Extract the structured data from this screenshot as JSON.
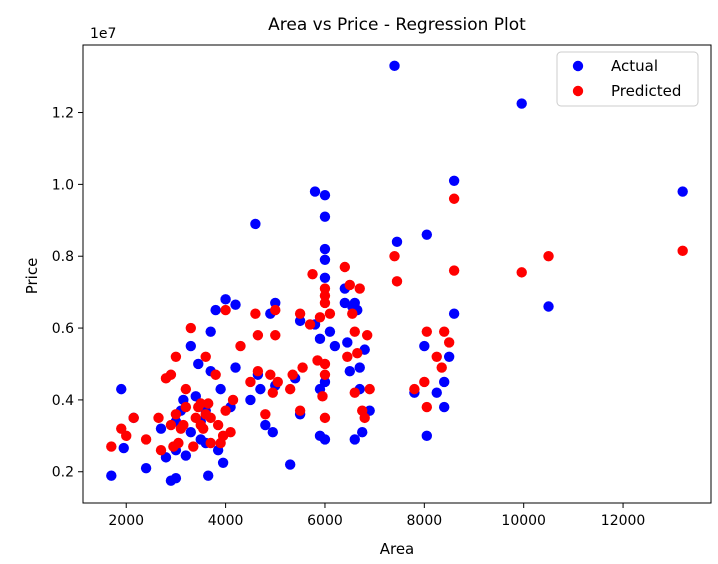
{
  "chart_data": {
    "type": "scatter",
    "title": "Area vs Price - Regression Plot",
    "xlabel": "Area",
    "ylabel": "Price",
    "y_scale_label": "1e7",
    "xlim": [
      1130,
      13770
    ],
    "ylim": [
      1130000,
      13880000
    ],
    "xticks": [
      2000,
      4000,
      6000,
      8000,
      10000,
      12000
    ],
    "yticks": [
      2000000,
      4000000,
      6000000,
      8000000,
      10000000,
      12000000
    ],
    "ytick_labels": [
      "0.2",
      "0.4",
      "0.6",
      "0.8",
      "1.0",
      "1.2"
    ],
    "grid": false,
    "legend_position": "top-right",
    "series": [
      {
        "name": "Actual",
        "color": "#0000ff",
        "points": [
          [
            1700,
            1890000
          ],
          [
            1950,
            2660000
          ],
          [
            1900,
            4300000
          ],
          [
            2150,
            3500000
          ],
          [
            2400,
            2100000
          ],
          [
            2700,
            3200000
          ],
          [
            2800,
            2400000
          ],
          [
            2900,
            1750000
          ],
          [
            3000,
            1820000
          ],
          [
            3000,
            2600000
          ],
          [
            3000,
            3400000
          ],
          [
            3100,
            3700000
          ],
          [
            3150,
            4000000
          ],
          [
            3200,
            2450000
          ],
          [
            3300,
            3100000
          ],
          [
            3300,
            5500000
          ],
          [
            3400,
            4100000
          ],
          [
            3450,
            5000000
          ],
          [
            3500,
            3400000
          ],
          [
            3500,
            2900000
          ],
          [
            3600,
            2800000
          ],
          [
            3600,
            3700000
          ],
          [
            3650,
            1890000
          ],
          [
            3700,
            4800000
          ],
          [
            3700,
            5900000
          ],
          [
            3800,
            6500000
          ],
          [
            3850,
            2600000
          ],
          [
            3900,
            4300000
          ],
          [
            3950,
            2250000
          ],
          [
            4000,
            6800000
          ],
          [
            4100,
            3800000
          ],
          [
            4200,
            4900000
          ],
          [
            4200,
            6650000
          ],
          [
            4500,
            4000000
          ],
          [
            4600,
            8900000
          ],
          [
            4650,
            4700000
          ],
          [
            4700,
            4300000
          ],
          [
            4800,
            3300000
          ],
          [
            4900,
            6400000
          ],
          [
            4950,
            3100000
          ],
          [
            5000,
            6700000
          ],
          [
            5000,
            4400000
          ],
          [
            5300,
            2200000
          ],
          [
            5400,
            4600000
          ],
          [
            5500,
            6200000
          ],
          [
            5500,
            3600000
          ],
          [
            5800,
            9800000
          ],
          [
            5800,
            6100000
          ],
          [
            5900,
            4300000
          ],
          [
            5900,
            5700000
          ],
          [
            5900,
            3000000
          ],
          [
            6000,
            9700000
          ],
          [
            6000,
            9100000
          ],
          [
            6000,
            8200000
          ],
          [
            6000,
            7900000
          ],
          [
            6000,
            7400000
          ],
          [
            6000,
            2900000
          ],
          [
            6000,
            4500000
          ],
          [
            6100,
            5900000
          ],
          [
            6200,
            5500000
          ],
          [
            6400,
            6700000
          ],
          [
            6400,
            7100000
          ],
          [
            6450,
            5600000
          ],
          [
            6500,
            4800000
          ],
          [
            6550,
            6600000
          ],
          [
            6600,
            6700000
          ],
          [
            6600,
            2900000
          ],
          [
            6650,
            6500000
          ],
          [
            6700,
            4300000
          ],
          [
            6700,
            4900000
          ],
          [
            6750,
            3100000
          ],
          [
            6800,
            5400000
          ],
          [
            6900,
            3700000
          ],
          [
            7400,
            13300000
          ],
          [
            7450,
            8400000
          ],
          [
            7800,
            4200000
          ],
          [
            8000,
            5500000
          ],
          [
            8050,
            3000000
          ],
          [
            8050,
            8600000
          ],
          [
            8250,
            4200000
          ],
          [
            8400,
            4500000
          ],
          [
            8400,
            3800000
          ],
          [
            8500,
            5200000
          ],
          [
            8600,
            10100000
          ],
          [
            8600,
            6400000
          ],
          [
            9960,
            12250000
          ],
          [
            10500,
            6600000
          ],
          [
            13200,
            9800000
          ]
        ]
      },
      {
        "name": "Predicted",
        "color": "#ff0000",
        "points": [
          [
            1700,
            2700000
          ],
          [
            1900,
            3200000
          ],
          [
            2000,
            3000000
          ],
          [
            2150,
            3500000
          ],
          [
            2400,
            2900000
          ],
          [
            2650,
            3500000
          ],
          [
            2700,
            2600000
          ],
          [
            2800,
            4600000
          ],
          [
            2900,
            4700000
          ],
          [
            2900,
            3300000
          ],
          [
            2950,
            2700000
          ],
          [
            3000,
            5200000
          ],
          [
            3000,
            3600000
          ],
          [
            3050,
            2800000
          ],
          [
            3100,
            3200000
          ],
          [
            3150,
            3300000
          ],
          [
            3200,
            4300000
          ],
          [
            3200,
            3800000
          ],
          [
            3300,
            6000000
          ],
          [
            3350,
            2700000
          ],
          [
            3400,
            3500000
          ],
          [
            3450,
            3800000
          ],
          [
            3500,
            3900000
          ],
          [
            3500,
            3300000
          ],
          [
            3550,
            3200000
          ],
          [
            3600,
            3600000
          ],
          [
            3600,
            5200000
          ],
          [
            3650,
            3900000
          ],
          [
            3700,
            2800000
          ],
          [
            3700,
            3500000
          ],
          [
            3800,
            4700000
          ],
          [
            3850,
            3300000
          ],
          [
            3900,
            2800000
          ],
          [
            3950,
            3000000
          ],
          [
            4000,
            6500000
          ],
          [
            4000,
            3700000
          ],
          [
            4100,
            3100000
          ],
          [
            4150,
            4000000
          ],
          [
            4300,
            5500000
          ],
          [
            4500,
            4500000
          ],
          [
            4600,
            6400000
          ],
          [
            4650,
            5800000
          ],
          [
            4650,
            4800000
          ],
          [
            4800,
            3600000
          ],
          [
            4900,
            4700000
          ],
          [
            4950,
            4200000
          ],
          [
            5000,
            5800000
          ],
          [
            5000,
            6500000
          ],
          [
            5050,
            4500000
          ],
          [
            5300,
            4300000
          ],
          [
            5350,
            4700000
          ],
          [
            5500,
            3700000
          ],
          [
            5500,
            6400000
          ],
          [
            5550,
            4900000
          ],
          [
            5700,
            6100000
          ],
          [
            5750,
            7500000
          ],
          [
            5850,
            5100000
          ],
          [
            5900,
            6300000
          ],
          [
            5950,
            4100000
          ],
          [
            6000,
            5000000
          ],
          [
            6000,
            7100000
          ],
          [
            6000,
            6900000
          ],
          [
            6000,
            6700000
          ],
          [
            6000,
            3500000
          ],
          [
            6000,
            4700000
          ],
          [
            6100,
            6400000
          ],
          [
            6400,
            7700000
          ],
          [
            6450,
            5200000
          ],
          [
            6500,
            7200000
          ],
          [
            6550,
            6400000
          ],
          [
            6600,
            5900000
          ],
          [
            6600,
            4200000
          ],
          [
            6650,
            5300000
          ],
          [
            6700,
            7100000
          ],
          [
            6750,
            3700000
          ],
          [
            6800,
            3500000
          ],
          [
            6850,
            5800000
          ],
          [
            6900,
            4300000
          ],
          [
            7400,
            8000000
          ],
          [
            7450,
            7300000
          ],
          [
            7800,
            4300000
          ],
          [
            8000,
            4500000
          ],
          [
            8050,
            5900000
          ],
          [
            8050,
            3800000
          ],
          [
            8250,
            5200000
          ],
          [
            8350,
            4900000
          ],
          [
            8400,
            5900000
          ],
          [
            8500,
            5600000
          ],
          [
            8600,
            9600000
          ],
          [
            8600,
            7600000
          ],
          [
            9960,
            7550000
          ],
          [
            10500,
            8000000
          ],
          [
            13200,
            8150000
          ]
        ]
      }
    ]
  }
}
